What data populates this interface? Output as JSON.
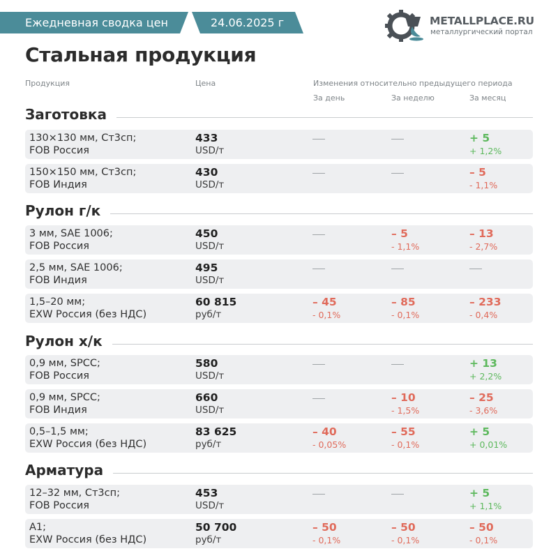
{
  "header": {
    "label": "Ежедневная сводка цен",
    "date": "24.06.2025 г"
  },
  "logo": {
    "name": "METALLPLACE.RU",
    "subtitle": "металлургический портал",
    "icon": "gear-ladle-icon"
  },
  "title": "Стальная продукция",
  "columns": {
    "product": "Продукция",
    "price": "Цена",
    "changes": "Изменения относительно предыдущего периода",
    "day": "За день",
    "week": "За неделю",
    "month": "За месяц"
  },
  "colors": {
    "accent": "#4b8c99",
    "up": "#5cb85c",
    "down": "#e06a5a"
  },
  "sections": [
    {
      "title": "Заготовка",
      "rows": [
        {
          "product1": "130×130 мм, Ст3сп;",
          "product2": "FOB Россия",
          "price": "433",
          "unit": "USD/т",
          "day": null,
          "week": null,
          "month": {
            "dir": "up",
            "value": "+ 5",
            "pct": "+ 1,2%"
          }
        },
        {
          "product1": "150×150 мм, Ст3сп;",
          "product2": "FOB Индия",
          "price": "430",
          "unit": "USD/т",
          "day": null,
          "week": null,
          "month": {
            "dir": "down",
            "value": "– 5",
            "pct": "- 1,1%"
          }
        }
      ]
    },
    {
      "title": "Рулон г/к",
      "rows": [
        {
          "product1": "3 мм, SAE 1006;",
          "product2": "FOB Россия",
          "price": "450",
          "unit": "USD/т",
          "day": null,
          "week": {
            "dir": "down",
            "value": "– 5",
            "pct": "- 1,1%"
          },
          "month": {
            "dir": "down",
            "value": "– 13",
            "pct": "- 2,7%"
          }
        },
        {
          "product1": "2,5 мм, SAE 1006;",
          "product2": "FOB Индия",
          "price": "495",
          "unit": "USD/т",
          "day": null,
          "week": null,
          "month": null
        },
        {
          "product1": "1,5–20 мм;",
          "product2": "EXW Россия (без НДС)",
          "price": "60 815",
          "unit": "руб/т",
          "day": {
            "dir": "down",
            "value": "– 45",
            "pct": "- 0,1%"
          },
          "week": {
            "dir": "down",
            "value": "– 85",
            "pct": "- 0,1%"
          },
          "month": {
            "dir": "down",
            "value": "– 233",
            "pct": "- 0,4%"
          }
        }
      ]
    },
    {
      "title": "Рулон х/к",
      "rows": [
        {
          "product1": "0,9 мм, SPCC;",
          "product2": "FOB Россия",
          "price": "580",
          "unit": "USD/т",
          "day": null,
          "week": null,
          "month": {
            "dir": "up",
            "value": "+ 13",
            "pct": "+ 2,2%"
          }
        },
        {
          "product1": "0,9 мм, SPCC;",
          "product2": "FOB Индия",
          "price": "660",
          "unit": "USD/т",
          "day": null,
          "week": {
            "dir": "down",
            "value": "– 10",
            "pct": "- 1,5%"
          },
          "month": {
            "dir": "down",
            "value": "– 25",
            "pct": "- 3,6%"
          }
        },
        {
          "product1": "0,5–1,5 мм;",
          "product2": "EXW Россия (без НДС)",
          "price": "83 625",
          "unit": "руб/т",
          "day": {
            "dir": "down",
            "value": "– 40",
            "pct": "- 0,05%"
          },
          "week": {
            "dir": "down",
            "value": "– 55",
            "pct": "- 0,1%"
          },
          "month": {
            "dir": "up",
            "value": "+ 5",
            "pct": "+ 0,01%"
          }
        }
      ]
    },
    {
      "title": "Арматура",
      "rows": [
        {
          "product1": "12–32 мм, Ст3сп;",
          "product2": "FOB Россия",
          "price": "453",
          "unit": "USD/т",
          "day": null,
          "week": null,
          "month": {
            "dir": "up",
            "value": "+ 5",
            "pct": "+ 1,1%"
          }
        },
        {
          "product1": "A1;",
          "product2": "EXW Россия (без НДС)",
          "price": "50 700",
          "unit": "руб/т",
          "day": {
            "dir": "down",
            "value": "– 50",
            "pct": "- 0,1%"
          },
          "week": {
            "dir": "down",
            "value": "– 50",
            "pct": "- 0,1%"
          },
          "month": {
            "dir": "down",
            "value": "– 50",
            "pct": "- 0,1%"
          }
        }
      ]
    }
  ]
}
